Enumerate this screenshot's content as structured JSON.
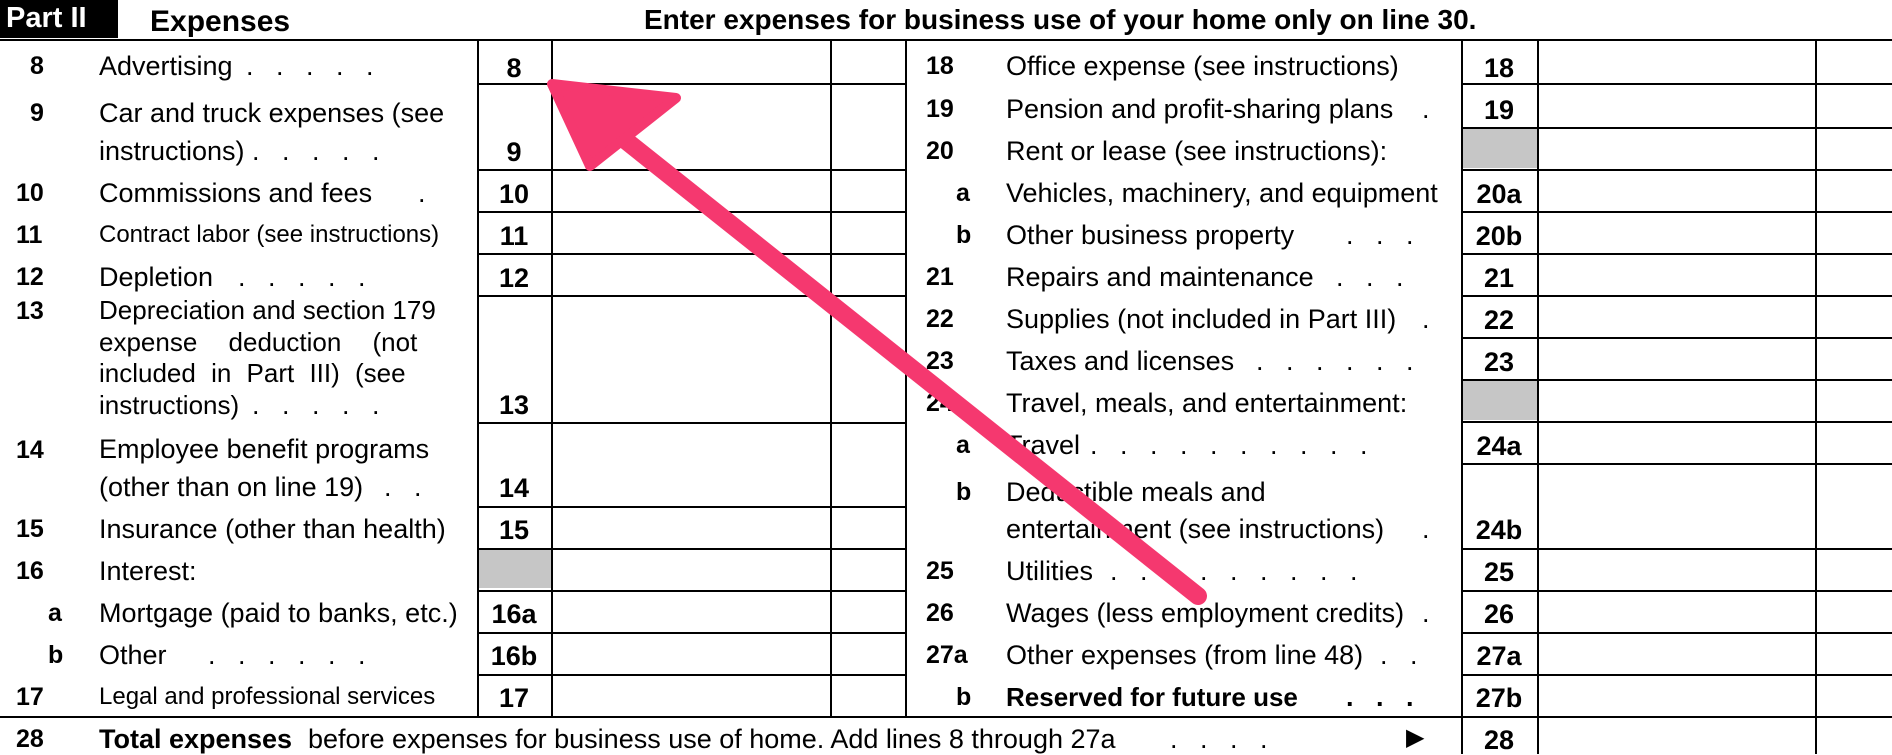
{
  "header": {
    "part_label": "Part II",
    "part_title": "Expenses",
    "instruction": "Enter expenses for business use of your home only on line 30."
  },
  "left_column": [
    {
      "line": "8",
      "label": "Advertising",
      "code": "8"
    },
    {
      "line": "9",
      "label_lines": [
        "Car and truck expenses (see",
        "instructions)"
      ],
      "code": "9"
    },
    {
      "line": "10",
      "label": "Commissions and fees",
      "code": "10"
    },
    {
      "line": "11",
      "label": "Contract labor (see instructions)",
      "code": "11"
    },
    {
      "line": "12",
      "label": "Depletion",
      "code": "12"
    },
    {
      "line": "13",
      "label_lines": [
        "Depreciation and section 179",
        "expense deduction (not",
        "included in Part III) (see",
        "instructions)"
      ],
      "code": "13"
    },
    {
      "line": "14",
      "label_lines": [
        "Employee benefit programs",
        "(other than on line 19)"
      ],
      "code": "14"
    },
    {
      "line": "15",
      "label": "Insurance (other than health)",
      "code": "15"
    },
    {
      "line": "16",
      "label": "Interest:"
    },
    {
      "line": "a",
      "label": "Mortgage (paid to banks, etc.)",
      "code": "16a"
    },
    {
      "line": "b",
      "label": "Other",
      "code": "16b"
    },
    {
      "line": "17",
      "label": "Legal and professional services",
      "code": "17"
    }
  ],
  "right_column": [
    {
      "line": "18",
      "label": "Office expense (see instructions)",
      "code": "18"
    },
    {
      "line": "19",
      "label": "Pension and profit-sharing plans",
      "code": "19"
    },
    {
      "line": "20",
      "label": "Rent or lease (see instructions):"
    },
    {
      "line": "a",
      "label": "Vehicles, machinery, and equipment",
      "code": "20a"
    },
    {
      "line": "b",
      "label": "Other business property",
      "code": "20b"
    },
    {
      "line": "21",
      "label": "Repairs and maintenance",
      "code": "21"
    },
    {
      "line": "22",
      "label": "Supplies (not included in Part III)",
      "code": "22"
    },
    {
      "line": "23",
      "label": "Taxes and licenses",
      "code": "23"
    },
    {
      "line": "24",
      "label": "Travel, meals, and entertainment:"
    },
    {
      "line": "a",
      "label": "Travel",
      "code": "24a"
    },
    {
      "line": "b",
      "label_lines": [
        "Deductible meals and",
        "entertainment (see instructions)"
      ],
      "code": "24b"
    },
    {
      "line": "25",
      "label": "Utilities",
      "code": "25"
    },
    {
      "line": "26",
      "label": "Wages (less employment credits)",
      "code": "26"
    },
    {
      "line": "27a",
      "label": "Other expenses (from line 48)",
      "code": "27a"
    },
    {
      "line": "b",
      "label": "Reserved for future use",
      "code": "27b"
    }
  ],
  "total_row": {
    "line": "28",
    "label_bold": "Total expenses",
    "label_rest": "before expenses for business use of home. Add lines 8 through 27a",
    "arrow_glyph": "▶",
    "code": "28"
  },
  "colors": {
    "annotation_arrow": "#f5386f",
    "shaded_cell": "#c6c6c6"
  }
}
